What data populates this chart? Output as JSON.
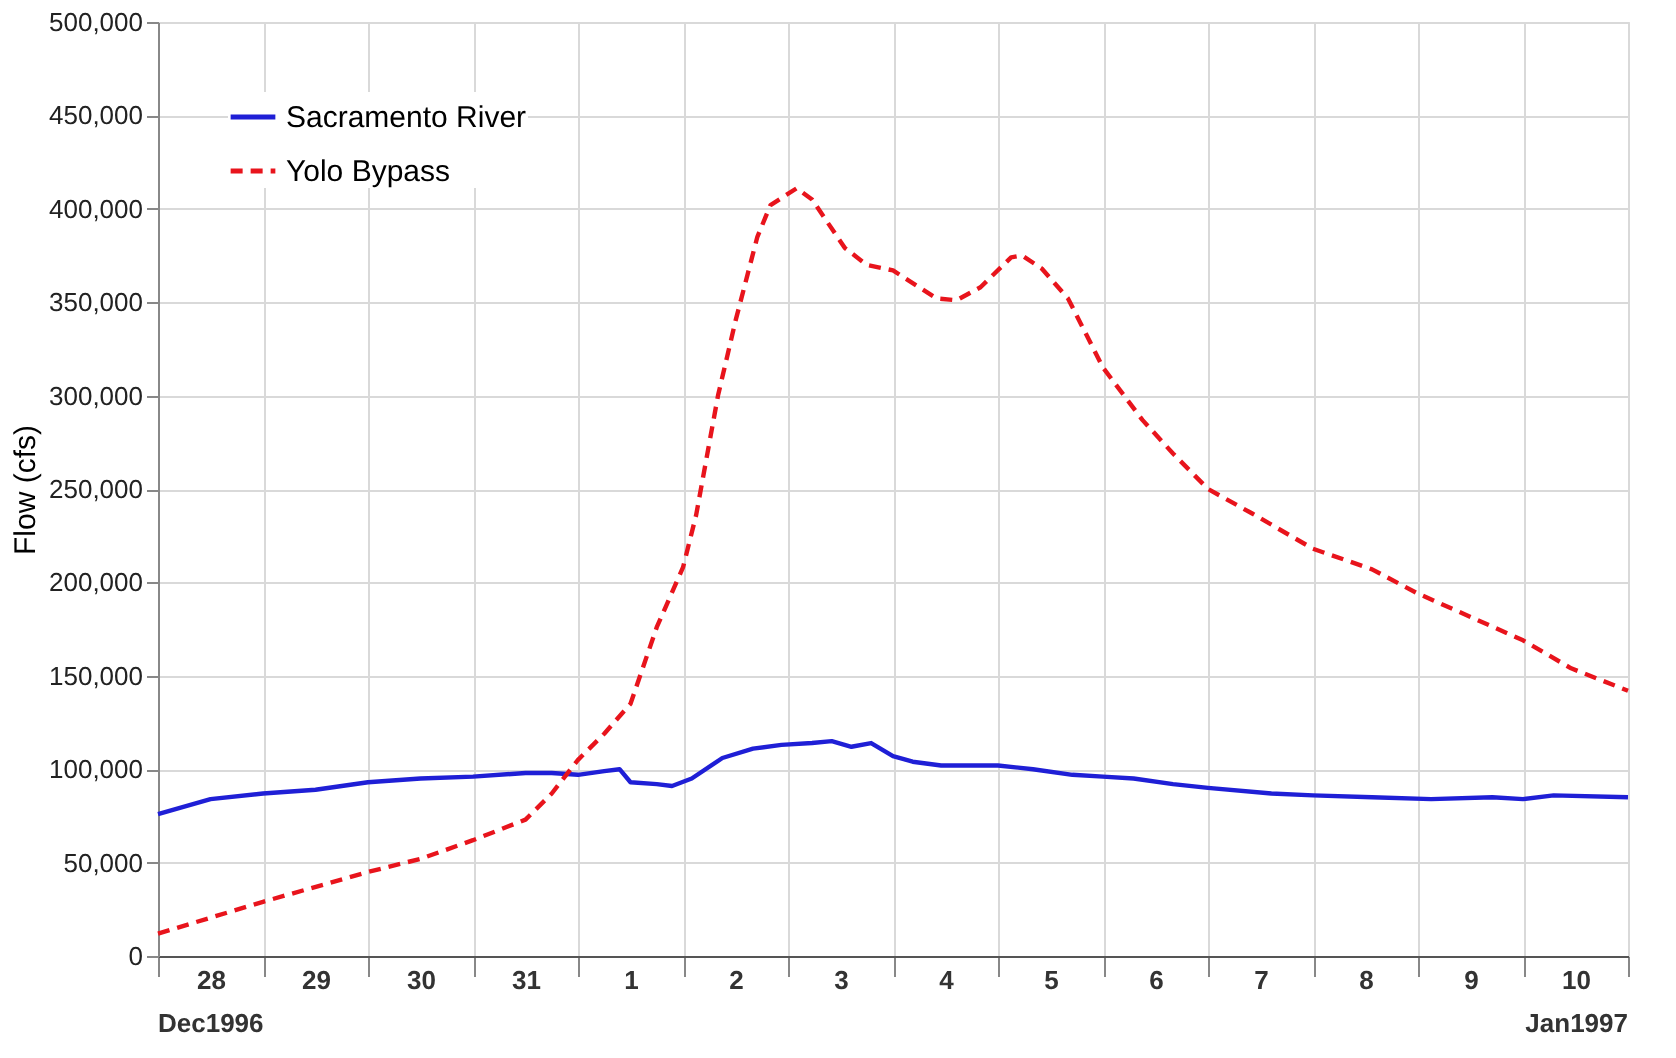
{
  "chart_data": {
    "type": "line",
    "ylabel": "Flow (cfs)",
    "xlim": [
      "1996-12-28T00:00",
      "1997-01-11T00:00"
    ],
    "ylim": [
      0,
      500000
    ],
    "yticks": [
      0,
      {
        "value": 50000,
        "label": "50,000"
      },
      {
        "value": 100000,
        "label": "100,000"
      },
      {
        "value": 150000,
        "label": "150,000"
      },
      {
        "value": 200000,
        "label": "200,000"
      },
      {
        "value": 250000,
        "label": "250,000"
      },
      {
        "value": 300000,
        "label": "300,000"
      },
      {
        "value": 350000,
        "label": "350,000"
      },
      {
        "value": 400000,
        "label": "400,000"
      },
      {
        "value": 450000,
        "label": "450,000"
      },
      {
        "value": 500000,
        "label": "500,000"
      }
    ],
    "annotations": [
      "Dec1996",
      "Jan1997"
    ],
    "xticks": [
      {
        "value": "1996-12-28T00:00",
        "label": null
      },
      {
        "value": "1996-12-28T12:00",
        "label": "28"
      },
      {
        "value": "1996-12-29T00:00",
        "label": null
      },
      {
        "value": "1996-12-29T12:00",
        "label": "29"
      },
      {
        "value": "1996-12-30T00:00",
        "label": null
      },
      {
        "value": "1996-12-30T12:00",
        "label": "30"
      },
      {
        "value": "1996-12-31T00:00",
        "label": null
      },
      {
        "value": "1996-12-31T12:00",
        "label": "31"
      },
      {
        "value": "1997-01-01T00:00",
        "label": null
      },
      {
        "value": "1997-01-01T12:00",
        "label": "1"
      },
      {
        "value": "1997-01-02T00:00",
        "label": null
      },
      {
        "value": "1997-01-02T12:00",
        "label": "2"
      },
      {
        "value": "1997-01-03T00:00",
        "label": null
      },
      {
        "value": "1997-01-03T12:00",
        "label": "3"
      },
      {
        "value": "1997-01-04T00:00",
        "label": null
      },
      {
        "value": "1997-01-04T12:00",
        "label": "4"
      },
      {
        "value": "1997-01-05T00:00",
        "label": null
      },
      {
        "value": "1997-01-05T12:00",
        "label": "5"
      },
      {
        "value": "1997-01-06T00:00",
        "label": null
      },
      {
        "value": "1997-01-06T12:00",
        "label": "6"
      },
      {
        "value": "1997-01-07T00:00",
        "label": null
      },
      {
        "value": "1997-01-07T12:00",
        "label": "7"
      },
      {
        "value": "1997-01-08T00:00",
        "label": null
      },
      {
        "value": "1997-01-08T12:00",
        "label": "8"
      },
      {
        "value": "1997-01-09T00:00",
        "label": null
      },
      {
        "value": "1997-01-09T12:00",
        "label": "9"
      },
      {
        "value": "1997-01-10T00:00",
        "label": null
      },
      {
        "value": "1997-01-10T12:00",
        "label": "10"
      },
      {
        "value": "1997-01-11T00:00",
        "label": null
      }
    ],
    "grid": true,
    "legend": "top left",
    "marker": "none",
    "series": [
      {
        "name": "Sacramento River",
        "color": "#1f1fd6",
        "line_style": "solid",
        "x": [
          "1996-12-28T00:00",
          "1996-12-28T12:00",
          "1996-12-29T00:00",
          "1996-12-29T12:00",
          "1996-12-30T00:00",
          "1996-12-30T12:00",
          "1996-12-31T00:00",
          "1996-12-31T12:00",
          "1996-12-31T18:00",
          "1997-01-01T00:00",
          "1997-01-01T06:00",
          "1997-01-01T09:30",
          "1997-01-01T12:00",
          "1997-01-01T18:00",
          "1997-01-01T21:30",
          "1997-01-02T02:00",
          "1997-01-02T09:00",
          "1997-01-02T16:00",
          "1997-01-02T22:30",
          "1997-01-03T05:30",
          "1997-01-03T10:00",
          "1997-01-03T14:30",
          "1997-01-03T19:00",
          "1997-01-04T00:00",
          "1997-01-04T04:30",
          "1997-01-04T11:00",
          "1997-01-05T00:00",
          "1997-01-05T08:00",
          "1997-01-05T17:00",
          "1997-01-06T00:00",
          "1997-01-06T07:00",
          "1997-01-06T16:00",
          "1997-01-07T00:00",
          "1997-01-07T14:30",
          "1997-01-08T00:00",
          "1997-01-08T13:30",
          "1997-01-09T03:00",
          "1997-01-09T17:00",
          "1997-01-10T00:00",
          "1997-01-10T07:00",
          "1997-01-11T00:00"
        ],
        "values": [
          76000,
          84000,
          87000,
          89000,
          93000,
          95000,
          96000,
          98000,
          98000,
          97000,
          99000,
          100000,
          93000,
          92000,
          91000,
          95000,
          106000,
          111000,
          113000,
          114000,
          115000,
          112000,
          114000,
          107000,
          104000,
          102000,
          102000,
          100000,
          97000,
          96000,
          95000,
          92000,
          90000,
          87000,
          86000,
          85000,
          84000,
          85000,
          84000,
          86000,
          85000
        ]
      },
      {
        "name": "Yolo Bypass",
        "color": "#e8141c",
        "line_style": "dashed",
        "x": [
          "1996-12-28T00:00",
          "1996-12-29T00:00",
          "1996-12-30T00:00",
          "1996-12-30T12:00",
          "1996-12-31T00:00",
          "1996-12-31T12:00",
          "1996-12-31T18:00",
          "1997-01-01T00:00",
          "1997-01-01T06:00",
          "1997-01-01T12:00",
          "1997-01-01T18:00",
          "1997-01-02T00:00",
          "1997-01-02T03:00",
          "1997-01-02T08:00",
          "1997-01-02T12:00",
          "1997-01-02T17:00",
          "1997-01-02T20:00",
          "1997-01-03T02:00",
          "1997-01-03T05:30",
          "1997-01-03T13:00",
          "1997-01-03T18:00",
          "1997-01-04T00:00",
          "1997-01-04T10:00",
          "1997-01-04T14:30",
          "1997-01-04T20:00",
          "1997-01-05T03:00",
          "1997-01-05T05:30",
          "1997-01-05T10:00",
          "1997-01-05T16:00",
          "1997-01-06T00:00",
          "1997-01-06T09:00",
          "1997-01-06T16:00",
          "1997-01-07T00:00",
          "1997-01-07T10:00",
          "1997-01-08T00:00",
          "1997-01-08T13:30",
          "1997-01-09T00:00",
          "1997-01-10T00:00",
          "1997-01-10T11:00",
          "1997-01-11T00:00"
        ],
        "values": [
          12000,
          29000,
          45000,
          52000,
          62000,
          73000,
          87000,
          105000,
          119000,
          135000,
          176000,
          208000,
          236000,
          300000,
          340000,
          385000,
          402000,
          411000,
          405000,
          379000,
          370000,
          367000,
          352000,
          351000,
          358000,
          374000,
          375000,
          368000,
          352000,
          315000,
          287000,
          269000,
          250000,
          237000,
          218000,
          207000,
          194000,
          169000,
          154000,
          142000
        ]
      }
    ]
  }
}
